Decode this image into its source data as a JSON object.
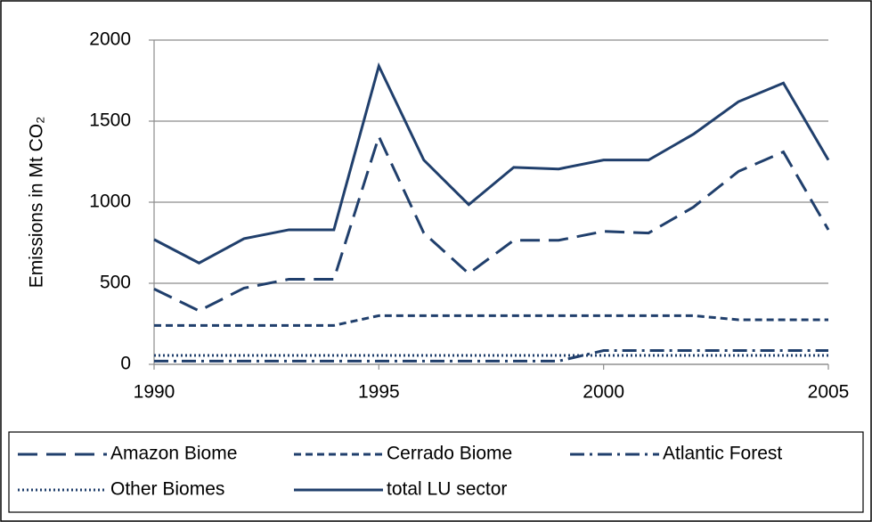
{
  "chart_data": {
    "type": "line",
    "y_label": "Emissions in Mt CO₂",
    "x": [
      1990,
      1991,
      1992,
      1993,
      1994,
      1995,
      1996,
      1997,
      1998,
      1999,
      2000,
      2001,
      2002,
      2003,
      2004,
      2005
    ],
    "xlim": [
      1990,
      2005
    ],
    "xticks": [
      1990,
      1995,
      2000,
      2005
    ],
    "ylim": [
      0,
      2000
    ],
    "yticks": [
      0,
      500,
      1000,
      1500,
      2000
    ],
    "grid": true,
    "series": [
      {
        "name": "Amazon Biome",
        "color": "#203f6c",
        "style": "long-dash",
        "values": [
          465,
          330,
          470,
          525,
          525,
          1405,
          810,
          560,
          765,
          765,
          820,
          810,
          970,
          1190,
          1310,
          830
        ]
      },
      {
        "name": "Cerrado Biome",
        "color": "#203f6c",
        "style": "dash",
        "values": [
          240,
          240,
          240,
          240,
          240,
          300,
          300,
          300,
          300,
          300,
          300,
          300,
          300,
          275,
          275,
          275
        ]
      },
      {
        "name": "Atlantic Forest",
        "color": "#203f6c",
        "style": "dash-dot",
        "values": [
          20,
          20,
          20,
          20,
          20,
          20,
          20,
          20,
          20,
          20,
          85,
          85,
          85,
          85,
          85,
          85
        ]
      },
      {
        "name": "Other Biomes",
        "color": "#203f6c",
        "style": "dot",
        "values": [
          55,
          55,
          55,
          55,
          55,
          55,
          55,
          55,
          55,
          55,
          55,
          55,
          55,
          55,
          55,
          55
        ]
      },
      {
        "name": "total LU sector",
        "color": "#203f6c",
        "style": "solid",
        "values": [
          770,
          625,
          775,
          830,
          830,
          1840,
          1260,
          985,
          1215,
          1205,
          1260,
          1260,
          1420,
          1620,
          1735,
          1260
        ]
      }
    ]
  }
}
